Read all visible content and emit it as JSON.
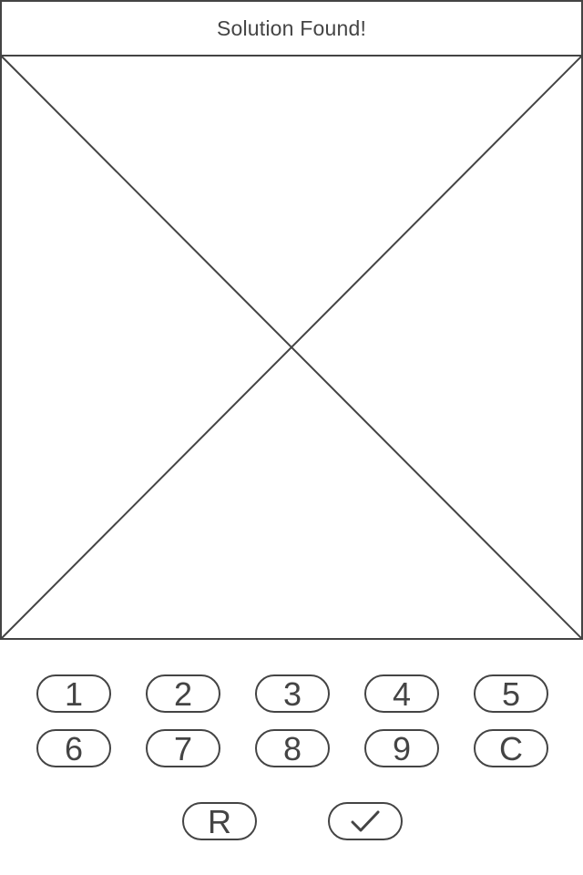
{
  "header": {
    "title": "Solution Found!"
  },
  "image_area": {
    "icon": "image-placeholder-icon"
  },
  "keypad": {
    "row1": [
      "1",
      "2",
      "3",
      "4",
      "5"
    ],
    "row2": [
      "6",
      "7",
      "8",
      "9",
      "C"
    ]
  },
  "actions": {
    "reset_label": "R",
    "confirm_icon": "checkmark-icon"
  },
  "colors": {
    "stroke": "#444444",
    "background": "#ffffff"
  }
}
